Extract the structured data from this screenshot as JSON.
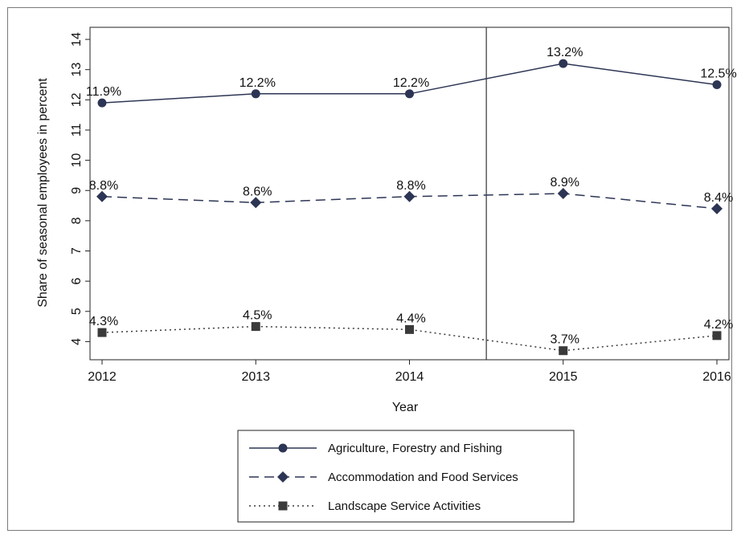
{
  "chart_data": {
    "type": "line",
    "x": [
      2012,
      2013,
      2014,
      2015,
      2016
    ],
    "xlabel": "Year",
    "ylabel": "Share of seasonal employees in percent",
    "ylim": [
      3.4,
      14.4
    ],
    "yticks": [
      4,
      5,
      6,
      7,
      8,
      9,
      10,
      11,
      12,
      13,
      14
    ],
    "xticks": [
      "2012",
      "2013",
      "2014",
      "2015",
      "2016"
    ],
    "vertical_reference_line_x": 2014.5,
    "grid": false,
    "legend_position": "bottom",
    "series": [
      {
        "name": "Agriculture, Forestry and Fishing",
        "values": [
          11.9,
          12.2,
          12.2,
          13.2,
          12.5
        ],
        "labels": [
          "11.9%",
          "12.2%",
          "12.2%",
          "13.2%",
          "12.5%"
        ],
        "marker": "circle",
        "line_style": "solid",
        "color": "#2d3554"
      },
      {
        "name": "Accommodation and Food Services",
        "values": [
          8.8,
          8.6,
          8.8,
          8.9,
          8.4
        ],
        "labels": [
          "8.8%",
          "8.6%",
          "8.8%",
          "8.9%",
          "8.4%"
        ],
        "marker": "diamond",
        "line_style": "dashed",
        "color": "#2d3554"
      },
      {
        "name": "Landscape Service Activities",
        "values": [
          4.3,
          4.5,
          4.4,
          3.7,
          4.2
        ],
        "labels": [
          "4.3%",
          "4.5%",
          "4.4%",
          "3.7%",
          "4.2%"
        ],
        "marker": "square",
        "line_style": "dotted",
        "color": "#3a3a3a"
      }
    ]
  }
}
